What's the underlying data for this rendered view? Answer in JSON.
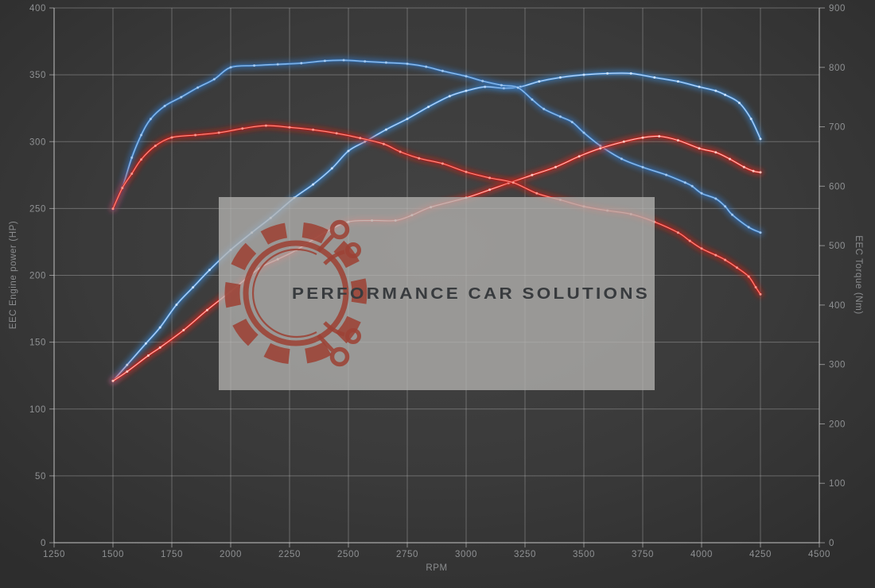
{
  "chart_data": {
    "type": "line",
    "title": "",
    "xlabel": "RPM",
    "ylabel_left": "EEC Engine power (HP)",
    "ylabel_right": "EEC Torque (Nm)",
    "x_range": [
      1250,
      4500
    ],
    "y_left_range": [
      0,
      400
    ],
    "y_right_range": [
      0,
      900
    ],
    "x_ticks": [
      1250,
      1500,
      1750,
      2000,
      2250,
      2500,
      2750,
      3000,
      3250,
      3500,
      3750,
      4000,
      4250,
      4500
    ],
    "y_left_ticks": [
      0,
      50,
      100,
      150,
      200,
      250,
      300,
      350,
      400
    ],
    "y_right_ticks": [
      0,
      100,
      200,
      300,
      400,
      500,
      600,
      700,
      800,
      900
    ],
    "grid": true,
    "legend": "none",
    "series": [
      {
        "name": "blue-power-hp",
        "axis": "left",
        "color": "#3d85cc",
        "core_color": "#d4e8ff",
        "points": [
          [
            1500,
            121
          ],
          [
            1560,
            133
          ],
          [
            1640,
            149
          ],
          [
            1700,
            161
          ],
          [
            1770,
            178
          ],
          [
            1840,
            191
          ],
          [
            1910,
            204
          ],
          [
            2000,
            219
          ],
          [
            2090,
            232
          ],
          [
            2170,
            243
          ],
          [
            2270,
            258
          ],
          [
            2350,
            268
          ],
          [
            2430,
            280
          ],
          [
            2500,
            293
          ],
          [
            2570,
            300
          ],
          [
            2660,
            309
          ],
          [
            2750,
            317
          ],
          [
            2840,
            326
          ],
          [
            2930,
            334
          ],
          [
            3000,
            338
          ],
          [
            3080,
            341
          ],
          [
            3160,
            340
          ],
          [
            3230,
            341
          ],
          [
            3310,
            345
          ],
          [
            3400,
            348
          ],
          [
            3500,
            350
          ],
          [
            3600,
            351
          ],
          [
            3700,
            351
          ],
          [
            3800,
            348
          ],
          [
            3900,
            345
          ],
          [
            3990,
            341
          ],
          [
            4060,
            338
          ],
          [
            4100,
            335
          ],
          [
            4160,
            329
          ],
          [
            4210,
            317
          ],
          [
            4250,
            302
          ]
        ]
      },
      {
        "name": "blue-torque-nm",
        "axis": "right",
        "color": "#3579c2",
        "core_color": "#a9cdf2",
        "points": [
          [
            1500,
            562
          ],
          [
            1540,
            598
          ],
          [
            1580,
            648
          ],
          [
            1620,
            686
          ],
          [
            1660,
            713
          ],
          [
            1720,
            735
          ],
          [
            1790,
            750
          ],
          [
            1860,
            766
          ],
          [
            1930,
            780
          ],
          [
            2000,
            800
          ],
          [
            2100,
            803
          ],
          [
            2200,
            805
          ],
          [
            2300,
            807
          ],
          [
            2400,
            811
          ],
          [
            2480,
            812
          ],
          [
            2570,
            810
          ],
          [
            2660,
            808
          ],
          [
            2750,
            806
          ],
          [
            2830,
            801
          ],
          [
            2900,
            794
          ],
          [
            3000,
            785
          ],
          [
            3070,
            777
          ],
          [
            3150,
            770
          ],
          [
            3220,
            766
          ],
          [
            3280,
            746
          ],
          [
            3330,
            730
          ],
          [
            3400,
            717
          ],
          [
            3450,
            708
          ],
          [
            3500,
            690
          ],
          [
            3570,
            668
          ],
          [
            3660,
            646
          ],
          [
            3750,
            632
          ],
          [
            3850,
            619
          ],
          [
            3930,
            606
          ],
          [
            3960,
            600
          ],
          [
            4000,
            588
          ],
          [
            4060,
            579
          ],
          [
            4100,
            566
          ],
          [
            4130,
            552
          ],
          [
            4200,
            531
          ],
          [
            4250,
            522
          ]
        ]
      },
      {
        "name": "red-power-hp",
        "axis": "left",
        "color": "#dc241c",
        "core_color": "#ffd2cc",
        "points": [
          [
            1500,
            121
          ],
          [
            1560,
            128
          ],
          [
            1650,
            140
          ],
          [
            1700,
            146
          ],
          [
            1800,
            159
          ],
          [
            1900,
            174
          ],
          [
            2000,
            188
          ],
          [
            2120,
            205
          ],
          [
            2200,
            212
          ],
          [
            2280,
            219
          ],
          [
            2400,
            232
          ],
          [
            2500,
            240
          ],
          [
            2600,
            241
          ],
          [
            2700,
            241
          ],
          [
            2770,
            245
          ],
          [
            2850,
            251
          ],
          [
            3000,
            258
          ],
          [
            3100,
            264
          ],
          [
            3180,
            269
          ],
          [
            3280,
            275
          ],
          [
            3380,
            281
          ],
          [
            3480,
            289
          ],
          [
            3570,
            295
          ],
          [
            3670,
            300
          ],
          [
            3750,
            303
          ],
          [
            3820,
            304
          ],
          [
            3900,
            301
          ],
          [
            3990,
            295
          ],
          [
            4060,
            292
          ],
          [
            4120,
            287
          ],
          [
            4180,
            281
          ],
          [
            4220,
            278
          ],
          [
            4250,
            277
          ]
        ]
      },
      {
        "name": "red-torque-nm",
        "axis": "right",
        "color": "#c92019",
        "core_color": "#ff9d94",
        "points": [
          [
            1500,
            562
          ],
          [
            1540,
            597
          ],
          [
            1580,
            621
          ],
          [
            1620,
            645
          ],
          [
            1680,
            668
          ],
          [
            1750,
            682
          ],
          [
            1850,
            686
          ],
          [
            1950,
            690
          ],
          [
            2050,
            697
          ],
          [
            2150,
            702
          ],
          [
            2250,
            699
          ],
          [
            2350,
            695
          ],
          [
            2450,
            689
          ],
          [
            2550,
            681
          ],
          [
            2650,
            671
          ],
          [
            2720,
            658
          ],
          [
            2800,
            647
          ],
          [
            2900,
            638
          ],
          [
            3000,
            624
          ],
          [
            3100,
            614
          ],
          [
            3200,
            606
          ],
          [
            3300,
            588
          ],
          [
            3400,
            577
          ],
          [
            3500,
            566
          ],
          [
            3600,
            559
          ],
          [
            3700,
            553
          ],
          [
            3800,
            540
          ],
          [
            3900,
            522
          ],
          [
            3950,
            508
          ],
          [
            4000,
            495
          ],
          [
            4060,
            484
          ],
          [
            4100,
            476
          ],
          [
            4150,
            463
          ],
          [
            4200,
            448
          ],
          [
            4230,
            430
          ],
          [
            4250,
            418
          ]
        ]
      }
    ]
  },
  "watermark": {
    "text": "PERFORMANCE CAR SOLUTIONS",
    "logo": "gear-circuit",
    "box_color": "#b5b4b2",
    "logo_color": "#9c4236",
    "text_color": "#383b3e"
  },
  "colors": {
    "background_center": "#434343",
    "background_edge": "#2d2d2d",
    "gridline": "#cccccc",
    "axis_line": "#d8d8d8",
    "tick_text": "#8f9193"
  }
}
